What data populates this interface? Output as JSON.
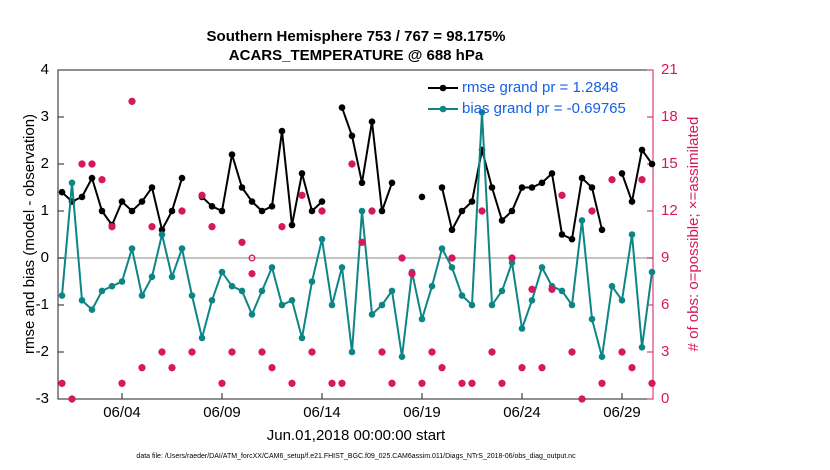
{
  "chart_data": {
    "type": "line",
    "title": "Southern Hemisphere 753 / 767 = 98.175%",
    "subtitle": "ACARS_TEMPERATURE @ 688 hPa",
    "x_label": "Jun.01,2018 00:00:00 start",
    "y_label": "rmse and bias (model - observation)",
    "y2_label": "# of obs: o=possible; ×=assimilated",
    "footnote": "data file: /Users/raeder/DAI/ATM_forcXX/CAM6_setup/f.e21.FHIST_BGC.f09_025.CAM6assim.011/Diags_NTrS_2018-06/obs_diag_output.nc",
    "x": [
      0,
      0.5,
      1,
      1.5,
      2,
      2.5,
      3,
      3.5,
      4,
      4.5,
      5,
      5.5,
      6,
      6.5,
      7,
      7.5,
      8,
      8.5,
      9,
      9.5,
      10,
      10.5,
      11,
      11.5,
      12,
      12.5,
      13,
      13.5,
      14,
      14.5,
      15,
      15.5,
      16,
      16.5,
      17,
      17.5,
      18,
      18.5,
      19,
      19.5,
      20,
      20.5,
      21,
      21.5,
      22,
      22.5,
      23,
      23.5,
      24,
      24.5,
      25,
      25.5,
      26,
      26.5,
      27,
      27.5,
      28,
      28.5,
      29,
      29.5
    ],
    "xlim": [
      -0.2,
      29.55
    ],
    "xticks": [
      {
        "value": 3,
        "label": "06/04"
      },
      {
        "value": 8,
        "label": "06/09"
      },
      {
        "value": 13,
        "label": "06/14"
      },
      {
        "value": 18,
        "label": "06/19"
      },
      {
        "value": 23,
        "label": "06/24"
      },
      {
        "value": 28,
        "label": "06/29"
      }
    ],
    "ylim": [
      -3,
      4
    ],
    "yticks": [
      -3,
      -2,
      -1,
      0,
      1,
      2,
      3,
      4
    ],
    "y2lim": [
      0,
      21
    ],
    "y2ticks": [
      0,
      3,
      6,
      9,
      12,
      15,
      18,
      21
    ],
    "y2_color": "#d6195e",
    "zero_line_color": "#b0b0b0",
    "legend": "upper right",
    "series": [
      {
        "name": "rmse grand pr = 1.2848",
        "color": "#000000",
        "marker": "dot",
        "line": true,
        "values": [
          1.4,
          1.2,
          1.3,
          1.7,
          1.0,
          0.7,
          1.2,
          1.0,
          1.2,
          1.5,
          0.6,
          1.0,
          1.7,
          null,
          1.3,
          1.1,
          1.0,
          2.2,
          1.5,
          1.2,
          1.0,
          1.1,
          2.7,
          0.7,
          1.8,
          1.0,
          1.2,
          null,
          3.2,
          2.6,
          1.6,
          2.9,
          1.0,
          1.6,
          null,
          null,
          1.3,
          null,
          1.5,
          0.6,
          1.0,
          1.2,
          2.3,
          1.5,
          0.8,
          1.0,
          1.5,
          1.5,
          1.6,
          1.8,
          0.5,
          0.4,
          1.7,
          1.5,
          0.6,
          null,
          1.8,
          1.2,
          2.3,
          2.0
        ]
      },
      {
        "name": "bias grand pr = -0.69765",
        "color": "#0e8585",
        "marker": "dot",
        "line": true,
        "values": [
          -0.8,
          1.6,
          -0.9,
          -1.1,
          -0.7,
          -0.6,
          -0.5,
          0.2,
          -0.8,
          -0.4,
          0.5,
          -0.4,
          0.2,
          -0.8,
          -1.7,
          -0.9,
          -0.3,
          -0.6,
          -0.7,
          -1.2,
          -0.7,
          -0.2,
          -1.0,
          -0.9,
          -1.7,
          -0.5,
          0.4,
          -1.0,
          -0.2,
          -2.0,
          1.0,
          -1.2,
          -1.0,
          -0.7,
          -2.1,
          -0.3,
          -1.3,
          -0.6,
          0.2,
          -0.2,
          -0.8,
          -1.0,
          3.1,
          -1.0,
          -0.7,
          -0.1,
          -1.5,
          -0.9,
          -0.2,
          -0.6,
          -0.7,
          -1.0,
          0.8,
          -1.3,
          -2.1,
          -0.6,
          -0.9,
          0.5,
          -1.9,
          -0.3
        ]
      },
      {
        "color": "#d6195e",
        "marker": "circle",
        "line": false,
        "axis": "y2",
        "values": [
          1,
          0,
          15,
          15,
          14,
          11,
          1,
          19,
          2,
          11,
          3,
          2,
          12,
          3,
          13,
          11,
          1,
          3,
          10,
          9,
          3,
          2,
          11,
          1,
          13,
          3,
          12,
          1,
          1,
          15,
          10,
          12,
          3,
          1,
          9,
          8,
          1,
          3,
          2,
          9,
          1,
          1,
          12,
          3,
          1,
          9,
          2,
          7,
          2,
          7,
          13,
          3,
          0,
          12,
          1,
          14,
          3,
          2,
          14,
          1
        ]
      },
      {
        "color": "#d6195e",
        "marker": "asterisk",
        "line": false,
        "axis": "y2",
        "values": [
          1,
          0,
          15,
          15,
          14,
          11,
          1,
          19,
          2,
          11,
          3,
          2,
          12,
          3,
          13,
          11,
          1,
          3,
          10,
          8,
          3,
          2,
          11,
          1,
          13,
          3,
          12,
          1,
          1,
          15,
          10,
          12,
          3,
          1,
          9,
          8,
          1,
          3,
          2,
          9,
          1,
          1,
          12,
          3,
          1,
          9,
          2,
          7,
          2,
          7,
          13,
          3,
          0,
          12,
          1,
          14,
          3,
          2,
          14,
          1
        ]
      }
    ]
  }
}
